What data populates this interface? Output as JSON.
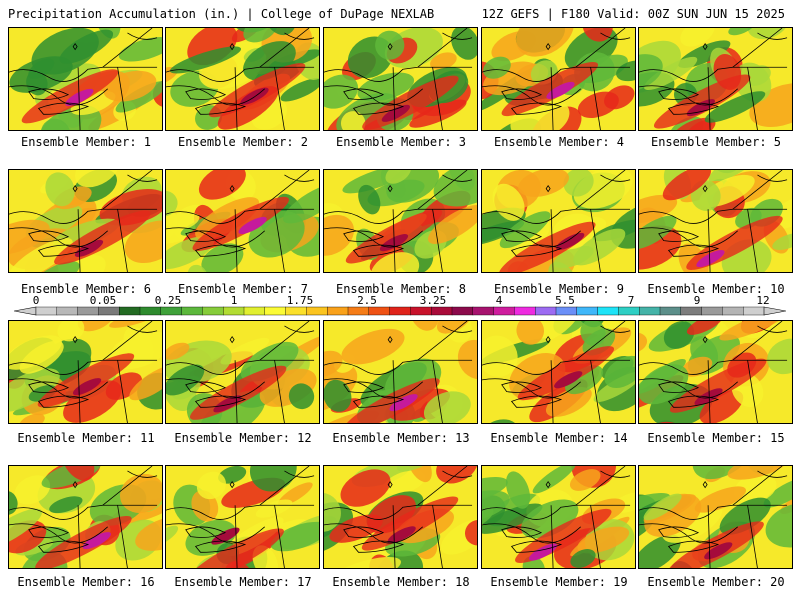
{
  "header": {
    "title": "Precipitation Accumulation (in.) | College of DuPage NEXLAB",
    "run_info": "12Z GEFS | F180 Valid: 00Z SUN JUN 15 2025"
  },
  "colorbar": {
    "tick_labels": [
      "0",
      "0.05",
      "0.25",
      "1",
      "1.75",
      "2.5",
      "3.25",
      "4",
      "5.5",
      "7",
      "9",
      "12"
    ],
    "colors": [
      "#cfcfcf",
      "#b8b8b8",
      "#9a9a9a",
      "#7a7a7a",
      "#236b23",
      "#2e8b2e",
      "#3fa13a",
      "#5cb83c",
      "#86cc3a",
      "#b2dc33",
      "#e1ef2f",
      "#fbfb35",
      "#fbe02a",
      "#fbc41f",
      "#f9a11a",
      "#f57c17",
      "#ef5114",
      "#e0231a",
      "#c8122b",
      "#a90b3a",
      "#8c0a4c",
      "#a7136f",
      "#cf1d9e",
      "#ee2be0",
      "#9c6bf2",
      "#6b8ff7",
      "#3fb7f9",
      "#1ee3f7",
      "#2ecfc4",
      "#44b3a8",
      "#5c8f8a",
      "#7d7d7d",
      "#9a9a9a",
      "#b4b4b4",
      "#cfcfcf"
    ]
  },
  "members": [
    {
      "label": "Ensemble Member: 1"
    },
    {
      "label": "Ensemble Member: 2"
    },
    {
      "label": "Ensemble Member: 3"
    },
    {
      "label": "Ensemble Member: 4"
    },
    {
      "label": "Ensemble Member: 5"
    },
    {
      "label": "Ensemble Member: 6"
    },
    {
      "label": "Ensemble Member: 7"
    },
    {
      "label": "Ensemble Member: 8"
    },
    {
      "label": "Ensemble Member: 9"
    },
    {
      "label": "Ensemble Member: 10"
    },
    {
      "label": "Ensemble Member: 11"
    },
    {
      "label": "Ensemble Member: 12"
    },
    {
      "label": "Ensemble Member: 13"
    },
    {
      "label": "Ensemble Member: 14"
    },
    {
      "label": "Ensemble Member: 15"
    },
    {
      "label": "Ensemble Member: 16"
    },
    {
      "label": "Ensemble Member: 17"
    },
    {
      "label": "Ensemble Member: 18"
    },
    {
      "label": "Ensemble Member: 19"
    },
    {
      "label": "Ensemble Member: 20"
    }
  ],
  "field_colors": {
    "background": "#f6e92a",
    "dark_green": "#2f8f2f",
    "green": "#5fb83a",
    "light_green": "#a9d83a",
    "yellow": "#f7f12d",
    "orange": "#f7a51c",
    "red": "#e6281a",
    "dark_red": "#a50b3c",
    "magenta": "#c51a9c",
    "outline": "#000000"
  }
}
